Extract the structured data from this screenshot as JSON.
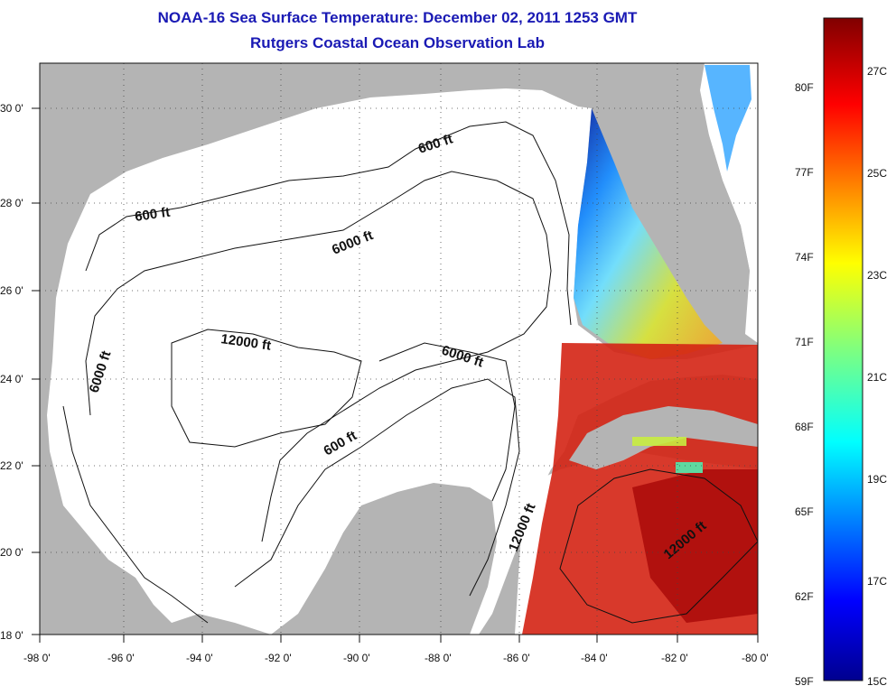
{
  "title": {
    "line1": "NOAA-16 Sea Surface Temperature:  December 02, 2011 1253 GMT",
    "line2": "Rutgers Coastal Ocean Observation Lab"
  },
  "map": {
    "lon_ticks": [
      "-98 0'",
      "-96 0'",
      "-94 0'",
      "-92 0'",
      "-90 0'",
      "-88 0'",
      "-86 0'",
      "-84 0'",
      "-82 0'",
      "-80 0'"
    ],
    "lat_ticks": [
      "30 0'",
      "28 0'",
      "26 0'",
      "24 0'",
      "22 0'",
      "20 0'",
      "18 0'"
    ],
    "contour_labels": [
      "600 ft",
      "600 ft",
      "6000 ft",
      "6000 ft",
      "6000 ft",
      "12000 ft",
      "600 ft",
      "12000 ft",
      "12000 ft"
    ],
    "colors": {
      "land": "#b4b4b4",
      "water": "#ffffff",
      "title": "#1a1ab4"
    }
  },
  "colorbar": {
    "fahrenheit_labels": [
      "80F",
      "77F",
      "74F",
      "71F",
      "68F",
      "65F",
      "62F",
      "59F"
    ],
    "celsius_labels": [
      "27C",
      "25C",
      "23C",
      "21C",
      "19C",
      "17C",
      "15C"
    ],
    "range_c": [
      15,
      28
    ],
    "colormap": "jet"
  }
}
